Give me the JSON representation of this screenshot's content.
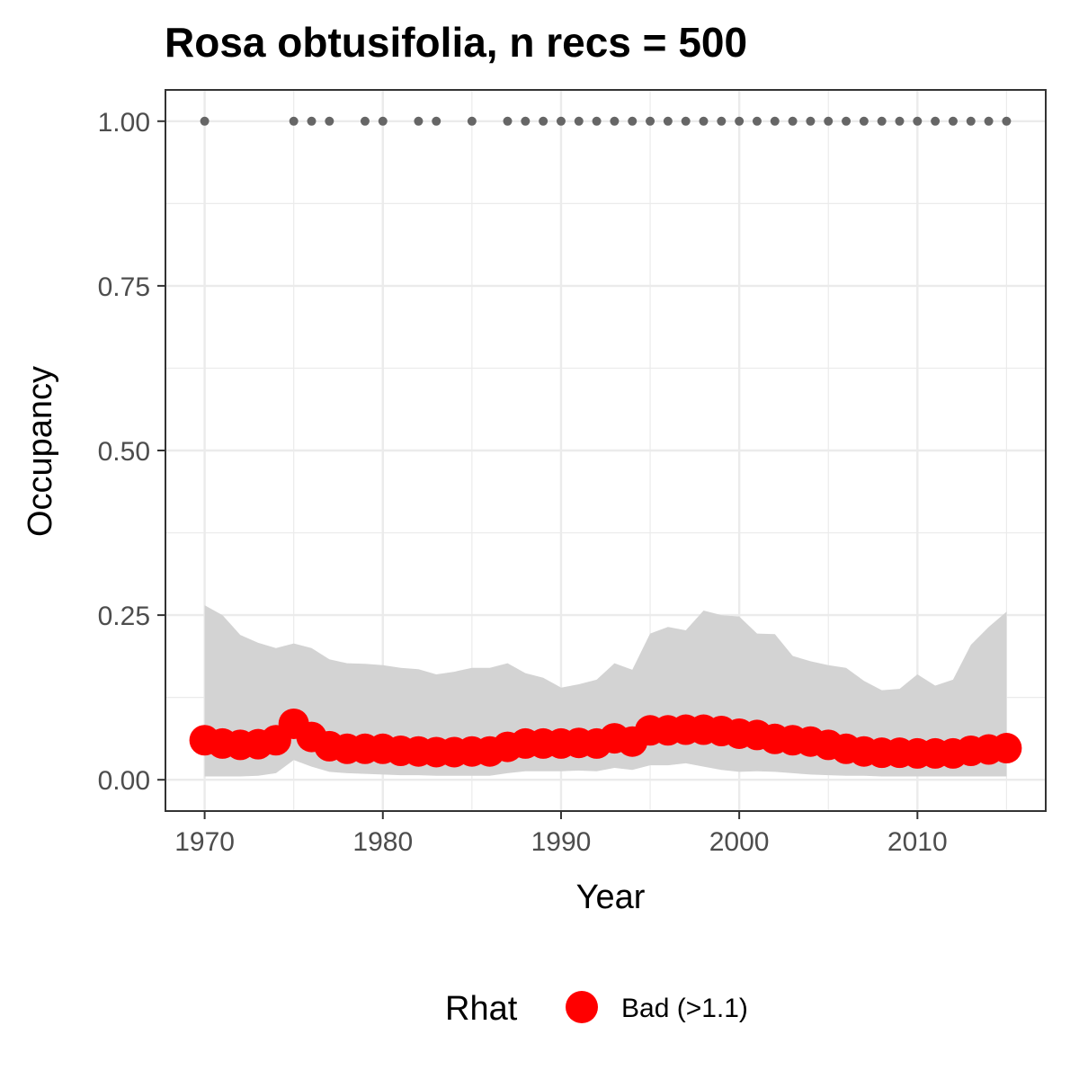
{
  "chart_data": {
    "type": "line",
    "title": "Rosa obtusifolia, n recs = 500",
    "xlabel": "Year",
    "ylabel": "Occupancy",
    "xlim": [
      1967.8,
      2017.2
    ],
    "ylim": [
      -0.0475,
      1.0475
    ],
    "x_ticks": [
      1970,
      1980,
      1990,
      2000,
      2010
    ],
    "x_tick_labels": [
      "1970",
      "1980",
      "1990",
      "2000",
      "2010"
    ],
    "y_ticks": [
      0,
      0.25,
      0.5,
      0.75,
      1.0
    ],
    "y_tick_labels": [
      "0.00",
      "0.25",
      "0.50",
      "0.75",
      "1.00"
    ],
    "grid": true,
    "legend": {
      "title": "Rhat",
      "position": "bottom",
      "entries": [
        {
          "label": "Bad (>1.1)",
          "color": "#ff0000"
        }
      ]
    },
    "colors": {
      "estimate": "#ff0000",
      "ribbon": "#d3d3d3",
      "records": "#666666",
      "grid": "#ebebeb",
      "panel_border": "#333333"
    },
    "x": [
      1970,
      1971,
      1972,
      1973,
      1974,
      1975,
      1976,
      1977,
      1978,
      1979,
      1980,
      1981,
      1982,
      1983,
      1984,
      1985,
      1986,
      1987,
      1988,
      1989,
      1990,
      1991,
      1992,
      1993,
      1994,
      1995,
      1996,
      1997,
      1998,
      1999,
      2000,
      2001,
      2002,
      2003,
      2004,
      2005,
      2006,
      2007,
      2008,
      2009,
      2010,
      2011,
      2012,
      2013,
      2014,
      2015
    ],
    "series": [
      {
        "name": "Bad (>1.1)",
        "values": [
          0.06,
          0.055,
          0.053,
          0.054,
          0.06,
          0.085,
          0.065,
          0.051,
          0.047,
          0.047,
          0.047,
          0.044,
          0.043,
          0.042,
          0.042,
          0.043,
          0.043,
          0.05,
          0.055,
          0.055,
          0.055,
          0.056,
          0.055,
          0.063,
          0.058,
          0.075,
          0.075,
          0.076,
          0.076,
          0.074,
          0.07,
          0.068,
          0.062,
          0.06,
          0.058,
          0.053,
          0.047,
          0.043,
          0.041,
          0.041,
          0.04,
          0.04,
          0.04,
          0.044,
          0.046,
          0.048
        ]
      }
    ],
    "ribbon_lower": [
      0.005,
      0.005,
      0.005,
      0.006,
      0.01,
      0.03,
      0.02,
      0.012,
      0.01,
      0.009,
      0.008,
      0.007,
      0.007,
      0.006,
      0.006,
      0.006,
      0.006,
      0.01,
      0.013,
      0.013,
      0.013,
      0.014,
      0.013,
      0.018,
      0.015,
      0.022,
      0.022,
      0.025,
      0.02,
      0.015,
      0.012,
      0.013,
      0.012,
      0.01,
      0.008,
      0.007,
      0.006,
      0.006,
      0.005,
      0.005,
      0.005,
      0.005,
      0.005,
      0.005,
      0.005,
      0.005
    ],
    "ribbon_upper": [
      0.265,
      0.25,
      0.22,
      0.208,
      0.2,
      0.207,
      0.2,
      0.183,
      0.177,
      0.176,
      0.174,
      0.17,
      0.168,
      0.16,
      0.164,
      0.17,
      0.17,
      0.177,
      0.162,
      0.155,
      0.14,
      0.145,
      0.152,
      0.177,
      0.167,
      0.222,
      0.232,
      0.227,
      0.257,
      0.25,
      0.248,
      0.222,
      0.221,
      0.188,
      0.18,
      0.174,
      0.17,
      0.15,
      0.136,
      0.138,
      0.16,
      0.143,
      0.152,
      0.205,
      0.232,
      0.255
    ],
    "records": {
      "y": 1.0,
      "years": [
        1970,
        1975,
        1976,
        1977,
        1979,
        1980,
        1982,
        1983,
        1985,
        1987,
        1988,
        1989,
        1990,
        1991,
        1992,
        1993,
        1994,
        1995,
        1996,
        1997,
        1998,
        1999,
        2000,
        2001,
        2002,
        2003,
        2004,
        2005,
        2006,
        2007,
        2008,
        2009,
        2010,
        2011,
        2012,
        2013,
        2014,
        2015
      ]
    }
  }
}
